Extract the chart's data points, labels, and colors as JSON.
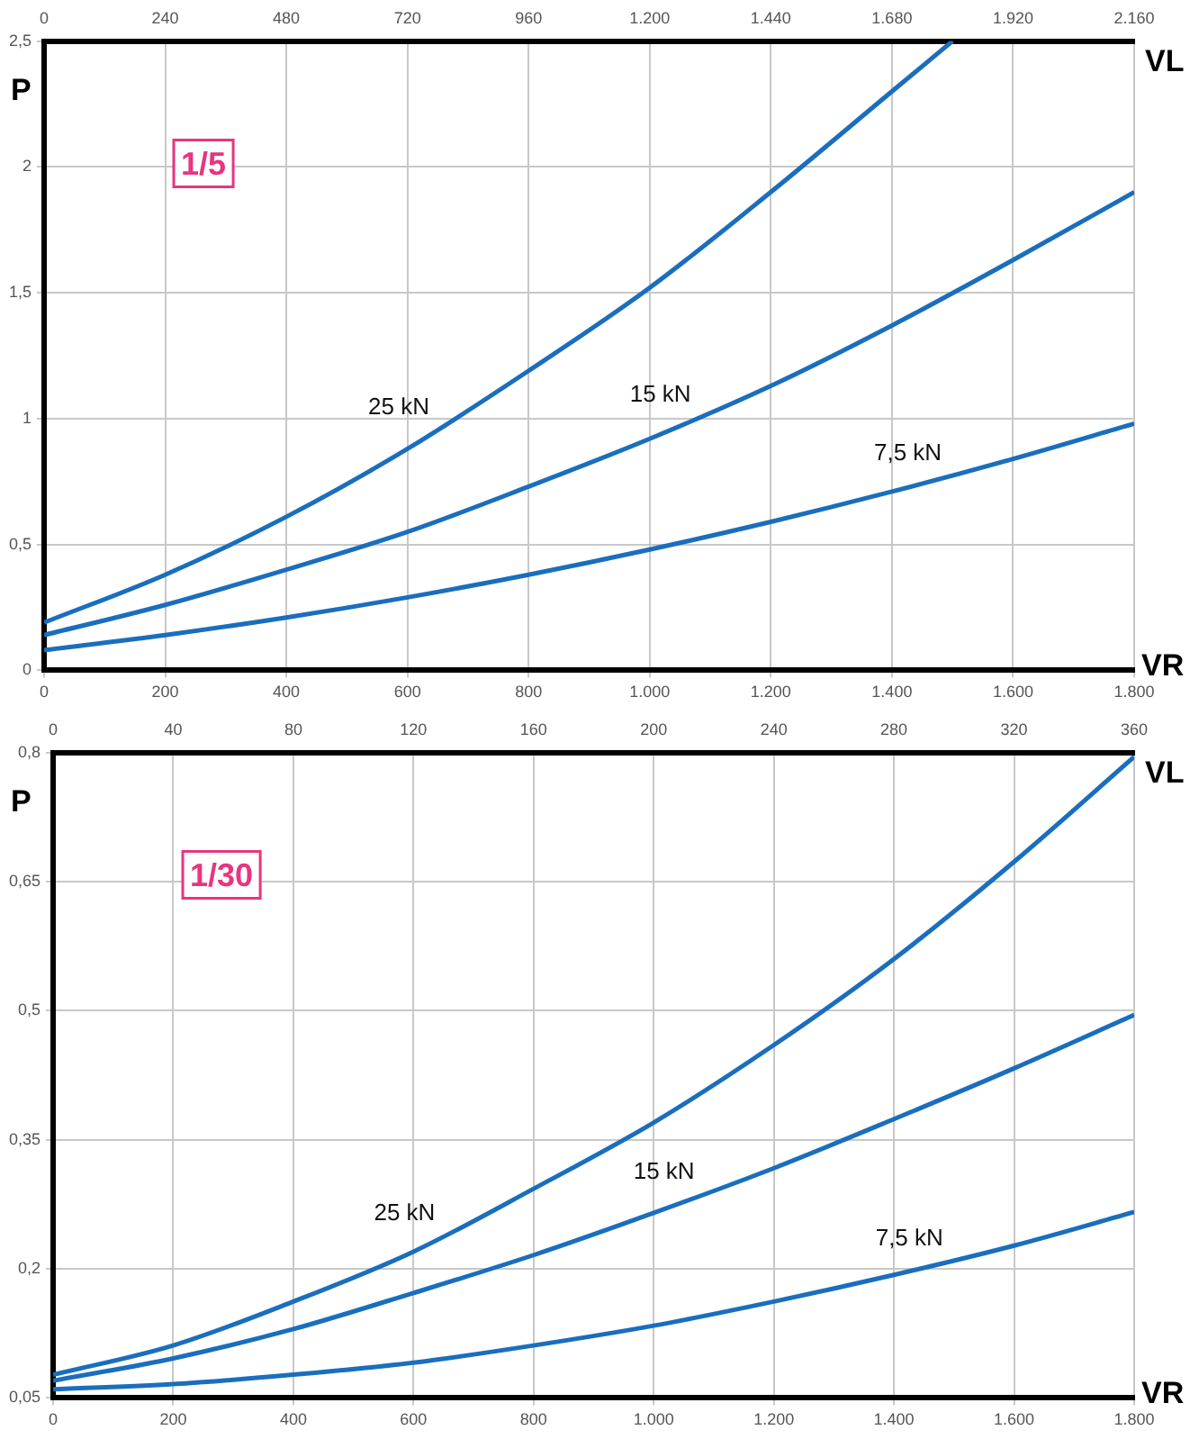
{
  "chart_data": [
    {
      "type": "line",
      "ylabel": "P",
      "xlabel": "VR",
      "x2label": "VL",
      "annotations": [
        "1/5"
      ],
      "grid": true,
      "legend": false,
      "marker": "none",
      "line_style": "solid",
      "x": [
        0,
        200,
        400,
        600,
        800,
        1000,
        1200,
        1400,
        1600,
        1800
      ],
      "xlim": [
        0,
        1800
      ],
      "xticks": [
        0,
        200,
        400,
        600,
        800,
        {
          "value": 1000,
          "label": "1.000"
        },
        {
          "value": 1200,
          "label": "1.200"
        },
        {
          "value": 1400,
          "label": "1.400"
        },
        {
          "value": 1600,
          "label": "1.600"
        },
        {
          "value": 1800,
          "label": "1.800"
        }
      ],
      "x2lim": [
        0,
        2160
      ],
      "x2ticks": [
        0,
        240,
        480,
        720,
        960,
        {
          "value": 1200,
          "label": "1.200"
        },
        {
          "value": 1440,
          "label": "1.440"
        },
        {
          "value": 1680,
          "label": "1.680"
        },
        {
          "value": 1920,
          "label": "1.920"
        },
        {
          "value": 2160,
          "label": "2.160"
        }
      ],
      "ylim": [
        0,
        2.5
      ],
      "yticks": [
        0,
        {
          "value": 0.5,
          "label": "0,5"
        },
        1,
        {
          "value": 1.5,
          "label": "1,5"
        },
        2,
        {
          "value": 2.5,
          "label": "2,5"
        }
      ],
      "series": [
        {
          "name": "25 kN",
          "color": "#1a6ebd",
          "x": [
            0,
            200,
            400,
            600,
            800,
            1000,
            1200,
            1400,
            1500
          ],
          "values": [
            0.19,
            0.38,
            0.61,
            0.88,
            1.19,
            1.52,
            1.9,
            2.3,
            2.5
          ]
        },
        {
          "name": "15 kN",
          "color": "#1a6ebd",
          "values": [
            0.14,
            0.26,
            0.4,
            0.55,
            0.73,
            0.92,
            1.13,
            1.37,
            1.63,
            1.9
          ]
        },
        {
          "name": "7,5 kN",
          "color": "#1a6ebd",
          "values": [
            0.08,
            0.14,
            0.21,
            0.29,
            0.38,
            0.48,
            0.59,
            0.71,
            0.84,
            0.98
          ]
        }
      ]
    },
    {
      "type": "line",
      "ylabel": "P",
      "xlabel": "VR",
      "x2label": "VL",
      "annotations": [
        "1/30"
      ],
      "grid": true,
      "legend": false,
      "marker": "none",
      "line_style": "solid",
      "x": [
        0,
        200,
        400,
        600,
        800,
        1000,
        1200,
        1400,
        1600,
        1800
      ],
      "xlim": [
        0,
        1800
      ],
      "xticks": [
        0,
        200,
        400,
        600,
        800,
        {
          "value": 1000,
          "label": "1.000"
        },
        {
          "value": 1200,
          "label": "1.200"
        },
        {
          "value": 1400,
          "label": "1.400"
        },
        {
          "value": 1600,
          "label": "1.600"
        },
        {
          "value": 1800,
          "label": "1.800"
        }
      ],
      "x2lim": [
        0,
        360
      ],
      "x2ticks": [
        0,
        40,
        80,
        120,
        160,
        200,
        240,
        280,
        320,
        360
      ],
      "ylim": [
        0.05,
        0.8
      ],
      "yticks": [
        {
          "value": 0.05,
          "label": "0,05"
        },
        {
          "value": 0.2,
          "label": "0,2"
        },
        {
          "value": 0.35,
          "label": "0,35"
        },
        {
          "value": 0.5,
          "label": "0,5"
        },
        {
          "value": 0.65,
          "label": "0,65"
        },
        {
          "value": 0.8,
          "label": "0,8"
        }
      ],
      "series": [
        {
          "name": "25 kN",
          "color": "#1a6ebd",
          "values": [
            0.077,
            0.111,
            0.162,
            0.22,
            0.293,
            0.37,
            0.46,
            0.56,
            0.673,
            0.795
          ]
        },
        {
          "name": "15 kN",
          "color": "#1a6ebd",
          "values": [
            0.07,
            0.096,
            0.13,
            0.172,
            0.216,
            0.265,
            0.317,
            0.374,
            0.433,
            0.495
          ]
        },
        {
          "name": "7,5 kN",
          "color": "#1a6ebd",
          "values": [
            0.06,
            0.066,
            0.077,
            0.091,
            0.111,
            0.134,
            0.162,
            0.193,
            0.227,
            0.266
          ]
        }
      ]
    }
  ]
}
